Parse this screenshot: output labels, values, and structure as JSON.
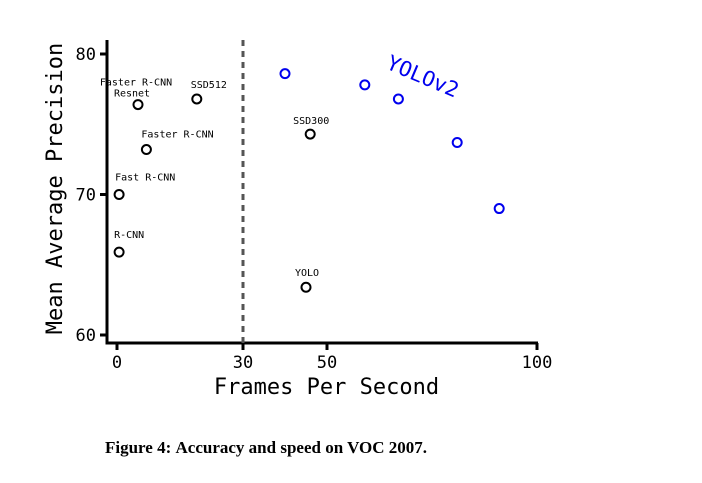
{
  "chart_data": {
    "type": "scatter",
    "xlabel": "Frames Per Second",
    "ylabel": "Mean Average Precision",
    "xticks": [
      0,
      30,
      50,
      100
    ],
    "yticks": [
      60,
      70,
      80
    ],
    "xlim": [
      -2,
      100
    ],
    "ylim": [
      59.5,
      81
    ],
    "grid": false,
    "reference_line": {
      "x": 30,
      "style": "dashed"
    },
    "series": [
      {
        "color": "#000000",
        "points": [
          {
            "label": "R-CNN",
            "x": 0.5,
            "y": 65.9
          },
          {
            "label": "Fast R-CNN",
            "x": 0.5,
            "y": 70.0
          },
          {
            "label": "Faster R-CNN",
            "x": 7,
            "y": 73.2
          },
          {
            "label": "Faster R-CNN Resnet",
            "x": 5,
            "y": 76.4
          },
          {
            "label": "SSD512",
            "x": 19,
            "y": 76.8
          },
          {
            "label": "SSD300",
            "x": 46,
            "y": 74.3
          },
          {
            "label": "YOLO",
            "x": 45,
            "y": 63.4
          }
        ]
      },
      {
        "name": "YOLOv2",
        "color": "#0000ee",
        "points": [
          {
            "x": 40,
            "y": 78.6
          },
          {
            "x": 59,
            "y": 77.8
          },
          {
            "x": 67,
            "y": 76.8
          },
          {
            "x": 81,
            "y": 73.7
          },
          {
            "x": 91,
            "y": 69.0
          }
        ]
      }
    ]
  },
  "caption": {
    "label": "Figure 4:",
    "text": "Accuracy and speed on VOC 2007."
  }
}
